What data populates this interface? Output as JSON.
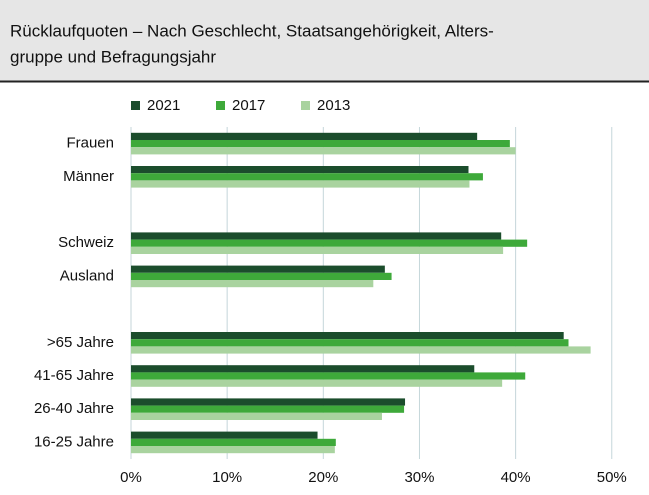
{
  "chart_data": {
    "type": "bar",
    "orientation": "horizontal",
    "title": [
      "Rücklaufquoten – Nach Geschlecht, Staatsangehörigkeit, Alters-",
      "gruppe und Befragungsjahr"
    ],
    "categories": [
      "Frauen",
      "Männer",
      null,
      "Schweiz",
      "Ausland",
      null,
      ">65 Jahre",
      "41-65 Jahre",
      "26-40 Jahre",
      "16-25 Jahre"
    ],
    "series": [
      {
        "name": "2021",
        "color": "#1b4d2c",
        "values": [
          36.0,
          35.1,
          null,
          38.5,
          26.4,
          null,
          45.0,
          35.7,
          28.5,
          19.4
        ]
      },
      {
        "name": "2017",
        "color": "#3ea93a",
        "values": [
          39.4,
          36.6,
          null,
          41.2,
          27.1,
          null,
          45.5,
          41.0,
          28.4,
          21.3
        ]
      },
      {
        "name": "2013",
        "color": "#a9d39f",
        "values": [
          40.0,
          35.2,
          null,
          38.7,
          25.2,
          null,
          47.8,
          38.6,
          26.1,
          21.2
        ]
      }
    ],
    "xlim": [
      0,
      52
    ],
    "xticks": [
      {
        "value": 0,
        "label": "0%"
      },
      {
        "value": 10,
        "label": "10%"
      },
      {
        "value": 20,
        "label": "20%"
      },
      {
        "value": 30,
        "label": "30%"
      },
      {
        "value": 40,
        "label": "40%"
      },
      {
        "value": 50,
        "label": "50%"
      }
    ],
    "grid": true,
    "legend": "top"
  }
}
